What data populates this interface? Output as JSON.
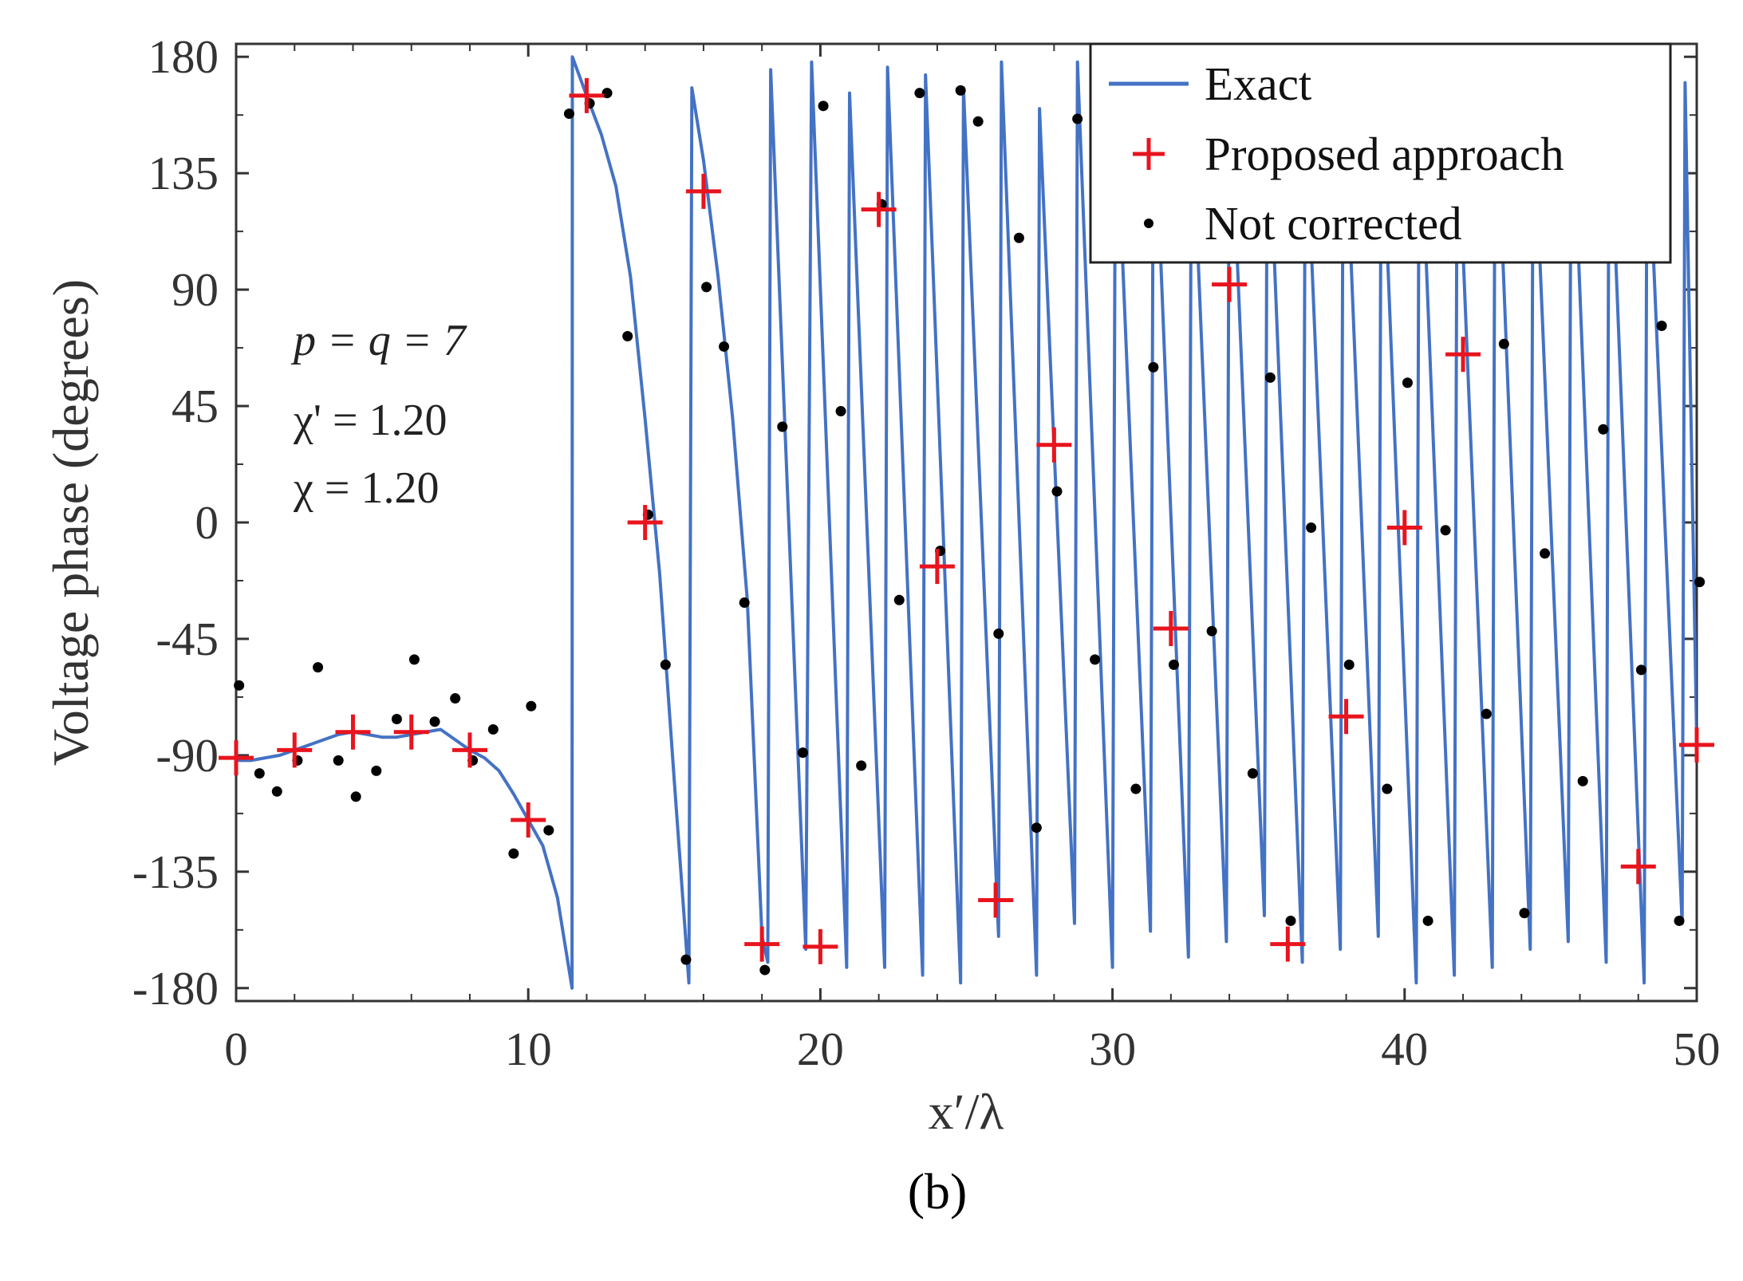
{
  "chart_data": {
    "type": "line",
    "xlabel": "x′/λ",
    "ylabel": "Voltage phase (degrees)",
    "panel_label": "(b)",
    "xlim": [
      0,
      50
    ],
    "ylim": [
      -185,
      185
    ],
    "x_ticks": [
      0,
      10,
      20,
      30,
      40,
      50
    ],
    "y_ticks": [
      180,
      135,
      90,
      45,
      0,
      -45,
      -90,
      -135,
      -180
    ],
    "x_tick_labels": [
      "0",
      "10",
      "20",
      "30",
      "40",
      "50"
    ],
    "y_tick_labels": [
      "180",
      "135",
      "90",
      "45",
      "0",
      "-45",
      "-90",
      "-135",
      "-180"
    ],
    "grid": false,
    "legend_position": "top-right",
    "annotations": [
      "p = q = 7",
      "χ' = 1.20",
      "χ = 1.20"
    ],
    "series": [
      {
        "name": "Exact",
        "style": "line",
        "color": "#4472c4",
        "points": [
          [
            0,
            -92
          ],
          [
            0.5,
            -92
          ],
          [
            1,
            -91
          ],
          [
            1.5,
            -90
          ],
          [
            2,
            -88
          ],
          [
            2.5,
            -86
          ],
          [
            3,
            -84
          ],
          [
            3.5,
            -82
          ],
          [
            4,
            -81
          ],
          [
            4.5,
            -82
          ],
          [
            5,
            -83
          ],
          [
            5.5,
            -83
          ],
          [
            6,
            -82
          ],
          [
            6.5,
            -81
          ],
          [
            7,
            -80
          ],
          [
            7.5,
            -84
          ],
          [
            8,
            -88
          ],
          [
            8.5,
            -91
          ],
          [
            9,
            -96
          ],
          [
            9.5,
            -105
          ],
          [
            10,
            -115
          ],
          [
            10.5,
            -125
          ],
          [
            11,
            -145
          ],
          [
            11.5,
            -180
          ],
          [
            11.51,
            180
          ],
          [
            12,
            165
          ],
          [
            12.5,
            150
          ],
          [
            13,
            130
          ],
          [
            13.5,
            95
          ],
          [
            14,
            40
          ],
          [
            14.5,
            -20
          ],
          [
            15,
            -100
          ],
          [
            15.5,
            -178
          ],
          [
            15.6,
            168
          ],
          [
            16,
            140
          ],
          [
            16.5,
            95
          ],
          [
            17,
            40
          ],
          [
            17.5,
            -30
          ],
          [
            18,
            -160
          ],
          [
            18.2,
            -170
          ],
          [
            18.3,
            175
          ],
          [
            19.5,
            -165
          ],
          [
            19.7,
            178
          ],
          [
            20.9,
            -172
          ],
          [
            21.0,
            166
          ],
          [
            22.2,
            -172
          ],
          [
            22.3,
            176
          ],
          [
            23.5,
            -175
          ],
          [
            23.6,
            173
          ],
          [
            24.8,
            -178
          ],
          [
            24.9,
            168
          ],
          [
            26.1,
            -160
          ],
          [
            26.2,
            178
          ],
          [
            27.4,
            -175
          ],
          [
            27.5,
            160
          ],
          [
            28.7,
            -155
          ],
          [
            28.8,
            178
          ],
          [
            30.0,
            -172
          ],
          [
            30.1,
            168
          ],
          [
            31.3,
            -158
          ],
          [
            31.4,
            173
          ],
          [
            32.6,
            -168
          ],
          [
            32.7,
            165
          ],
          [
            33.9,
            -162
          ],
          [
            34.0,
            176
          ],
          [
            35.2,
            -152
          ],
          [
            35.3,
            170
          ],
          [
            36.5,
            -170
          ],
          [
            36.6,
            162
          ],
          [
            37.8,
            -165
          ],
          [
            37.9,
            176
          ],
          [
            39.1,
            -160
          ],
          [
            39.2,
            165
          ],
          [
            40.4,
            -178
          ],
          [
            40.5,
            170
          ],
          [
            41.7,
            -175
          ],
          [
            41.8,
            160
          ],
          [
            43.0,
            -172
          ],
          [
            43.1,
            177
          ],
          [
            44.3,
            -165
          ],
          [
            44.4,
            165
          ],
          [
            45.6,
            -162
          ],
          [
            45.7,
            176
          ],
          [
            46.9,
            -170
          ],
          [
            47.0,
            168
          ],
          [
            48.2,
            -178
          ],
          [
            48.3,
            160
          ],
          [
            49.5,
            -155
          ],
          [
            49.6,
            170
          ],
          [
            50,
            -85
          ]
        ]
      },
      {
        "name": "Proposed approach",
        "style": "plus",
        "color": "#e8141e",
        "points": [
          [
            0,
            -91
          ],
          [
            2,
            -88
          ],
          [
            4,
            -81
          ],
          [
            6,
            -81
          ],
          [
            8,
            -88
          ],
          [
            10,
            -115
          ],
          [
            12,
            165
          ],
          [
            14,
            0
          ],
          [
            16,
            128
          ],
          [
            18,
            -163
          ],
          [
            20,
            -164
          ],
          [
            22,
            121
          ],
          [
            24,
            -17
          ],
          [
            26,
            -146
          ],
          [
            28,
            30
          ],
          [
            32,
            -41
          ],
          [
            34,
            92
          ],
          [
            36,
            -163
          ],
          [
            38,
            -75
          ],
          [
            40,
            -2
          ],
          [
            42,
            65
          ],
          [
            48,
            -133
          ],
          [
            50,
            -86
          ]
        ]
      },
      {
        "name": "Not corrected",
        "style": "dot",
        "color": "#000000",
        "points": [
          [
            0.1,
            -63
          ],
          [
            0.8,
            -97
          ],
          [
            1.4,
            -104
          ],
          [
            2.1,
            -92
          ],
          [
            2.8,
            -56
          ],
          [
            3.5,
            -92
          ],
          [
            4.1,
            -106
          ],
          [
            4.8,
            -96
          ],
          [
            5.5,
            -76
          ],
          [
            6.1,
            -53
          ],
          [
            6.8,
            -77
          ],
          [
            7.5,
            -68
          ],
          [
            8.1,
            -92
          ],
          [
            8.8,
            -80
          ],
          [
            9.5,
            -128
          ],
          [
            10.1,
            -71
          ],
          [
            10.7,
            -119
          ],
          [
            11.4,
            158
          ],
          [
            12.1,
            162
          ],
          [
            12.7,
            166
          ],
          [
            13.4,
            72
          ],
          [
            14.1,
            3
          ],
          [
            14.7,
            -55
          ],
          [
            15.4,
            -169
          ],
          [
            16.1,
            91
          ],
          [
            16.7,
            68
          ],
          [
            17.4,
            -31
          ],
          [
            18.1,
            -173
          ],
          [
            18.7,
            37
          ],
          [
            19.4,
            -89
          ],
          [
            20.1,
            161
          ],
          [
            20.7,
            43
          ],
          [
            21.4,
            -94
          ],
          [
            22.1,
            123
          ],
          [
            22.7,
            -30
          ],
          [
            23.4,
            166
          ],
          [
            24.1,
            -11
          ],
          [
            24.8,
            167
          ],
          [
            25.4,
            155
          ],
          [
            26.1,
            -43
          ],
          [
            26.8,
            110
          ],
          [
            27.4,
            -118
          ],
          [
            28.1,
            12
          ],
          [
            28.8,
            156
          ],
          [
            29.4,
            -53
          ],
          [
            30.1,
            170
          ],
          [
            30.8,
            -103
          ],
          [
            31.4,
            60
          ],
          [
            32.1,
            -55
          ],
          [
            32.8,
            176
          ],
          [
            33.4,
            -42
          ],
          [
            34.1,
            153
          ],
          [
            34.8,
            -97
          ],
          [
            35.4,
            56
          ],
          [
            36.1,
            -154
          ],
          [
            36.8,
            -2
          ],
          [
            37.4,
            170
          ],
          [
            38.1,
            -55
          ],
          [
            38.8,
            148
          ],
          [
            39.4,
            -103
          ],
          [
            40.1,
            54
          ],
          [
            40.8,
            -154
          ],
          [
            41.4,
            -3
          ],
          [
            42.1,
            170
          ],
          [
            42.8,
            -74
          ],
          [
            43.4,
            69
          ],
          [
            44.1,
            -151
          ],
          [
            44.8,
            -12
          ],
          [
            45.4,
            170
          ],
          [
            46.1,
            -100
          ],
          [
            46.8,
            36
          ],
          [
            47.4,
            170
          ],
          [
            48.1,
            -57
          ],
          [
            48.8,
            76
          ],
          [
            49.4,
            -154
          ],
          [
            50.1,
            -23
          ]
        ]
      }
    ]
  }
}
